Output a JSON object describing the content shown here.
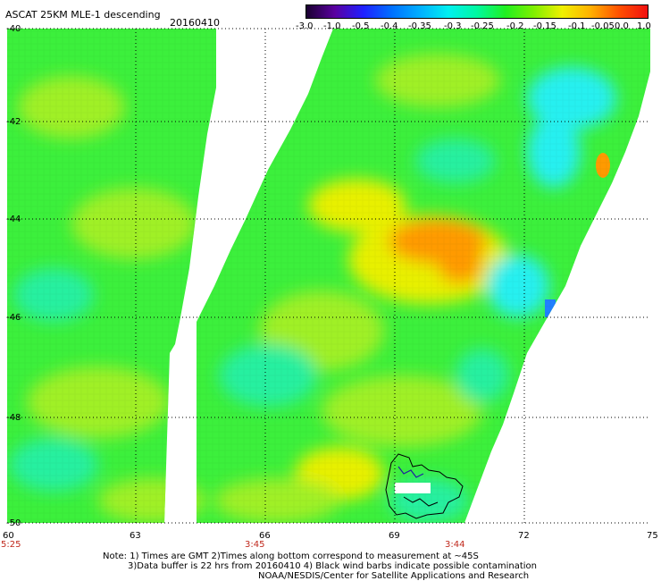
{
  "header": {
    "title": "ASCAT 25KM MLE-1 descending",
    "date": "20160410"
  },
  "colorbar": {
    "labels": [
      "-3.0",
      "-1.0",
      "-0.5",
      "-0.4",
      "-0.35",
      "-0.3",
      "-0.25",
      "-0.2",
      "-0.15",
      "-0.1",
      "-0.05",
      "0.0",
      "1.0"
    ],
    "colors": [
      "#1a0030",
      "#5a00a0",
      "#2020ff",
      "#0070ff",
      "#00b0ff",
      "#00f0f0",
      "#00f8a0",
      "#20f020",
      "#80f000",
      "#f0f000",
      "#ffb000",
      "#ff5000",
      "#f01010"
    ]
  },
  "map": {
    "lat_labels": [
      "-40",
      "-42",
      "-44",
      "-46",
      "-48",
      "-50"
    ],
    "lon_labels": [
      "60",
      "63",
      "66",
      "69",
      "72",
      "75"
    ],
    "time_labels": [
      "5:25",
      "3:45",
      "3:44"
    ],
    "colors": {
      "background": "#ffffff",
      "green": "#3cf03c",
      "yellow_green": "#a0f028",
      "cyan_green": "#28f0a0",
      "cyan": "#28f0f0",
      "orange": "#ff9a00",
      "yellow": "#e8f000",
      "gridline": "#000000",
      "coastline": "#000000"
    }
  },
  "notes": [
    "Note: 1) Times are GMT 2)Times along bottom correspond to measurement at ~45S",
    "3)Data buffer is 22 hrs from 20160410 4) Black wind barbs indicate possible contamination",
    "NOAA/NESDIS/Center for Satellite Applications and Research"
  ]
}
